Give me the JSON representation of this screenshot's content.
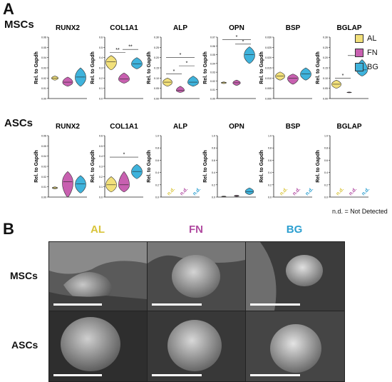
{
  "panel_a_label": "A",
  "panel_b_label": "B",
  "row_labels": [
    "MSCs",
    "ASCs"
  ],
  "y_axis_label": "Rel. to Gapdh",
  "nd_label": "n.d.",
  "nd_note": "n.d. = Not Detected",
  "legend": [
    {
      "name": "AL",
      "color": "#f2e07a"
    },
    {
      "name": "FN",
      "color": "#c860b0"
    },
    {
      "name": "BG",
      "color": "#3fb3dc"
    }
  ],
  "colors": {
    "AL": "#f2e07a",
    "FN": "#c860b0",
    "BG": "#3fb3dc",
    "al_text": "#d9c43a",
    "fn_text": "#b04aa0",
    "bg_text": "#2c9fd0"
  },
  "chart_data": [
    {
      "type": "violin",
      "row": "MSCs",
      "title": "RUNX2",
      "ylabel": "Rel. to Gapdh",
      "ylim": [
        0,
        0.06
      ],
      "yticks": [
        "0.00",
        "0.01",
        "0.02",
        "0.03",
        "0.04",
        "0.05",
        "0.06"
      ],
      "series": [
        {
          "name": "AL",
          "median": 0.02,
          "min": 0.018,
          "max": 0.022
        },
        {
          "name": "FN",
          "median": 0.016,
          "min": 0.012,
          "max": 0.021
        },
        {
          "name": "BG",
          "median": 0.021,
          "min": 0.012,
          "max": 0.03
        }
      ],
      "significance": []
    },
    {
      "type": "violin",
      "row": "MSCs",
      "title": "COL1A1",
      "ylabel": "Rel. to Gapdh",
      "ylim": [
        0,
        0.6
      ],
      "yticks": [
        "0.0",
        "0.1",
        "0.2",
        "0.3",
        "0.4",
        "0.5",
        "0.6"
      ],
      "series": [
        {
          "name": "AL",
          "median": 0.36,
          "min": 0.28,
          "max": 0.42
        },
        {
          "name": "FN",
          "median": 0.19,
          "min": 0.15,
          "max": 0.25
        },
        {
          "name": "BG",
          "median": 0.34,
          "min": 0.29,
          "max": 0.4
        }
      ],
      "significance": [
        {
          "from": 0,
          "to": 1,
          "y": 0.45,
          "label": "**"
        },
        {
          "from": 1,
          "to": 2,
          "y": 0.48,
          "label": "**"
        }
      ]
    },
    {
      "type": "violin",
      "row": "MSCs",
      "title": "ALP",
      "ylabel": "Rel. to Gapdh",
      "ylim": [
        0,
        0.3
      ],
      "yticks": [
        "0.00",
        "0.05",
        "0.10",
        "0.15",
        "0.20",
        "0.25",
        "0.30"
      ],
      "series": [
        {
          "name": "AL",
          "median": 0.08,
          "min": 0.06,
          "max": 0.1
        },
        {
          "name": "FN",
          "median": 0.04,
          "min": 0.03,
          "max": 0.06
        },
        {
          "name": "BG",
          "median": 0.08,
          "min": 0.06,
          "max": 0.11
        }
      ],
      "significance": [
        {
          "from": 0,
          "to": 1,
          "y": 0.12,
          "label": "*"
        },
        {
          "from": 1,
          "to": 2,
          "y": 0.16,
          "label": "*"
        },
        {
          "from": 0,
          "to": 2,
          "y": 0.2,
          "label": "*"
        }
      ]
    },
    {
      "type": "violin",
      "row": "MSCs",
      "title": "OPN",
      "ylabel": "Rel. to Gapdh",
      "ylim": [
        0,
        0.07
      ],
      "yticks": [
        "0.00",
        "0.01",
        "0.02",
        "0.03",
        "0.04",
        "0.05",
        "0.06",
        "0.07"
      ],
      "series": [
        {
          "name": "AL",
          "median": 0.018,
          "min": 0.017,
          "max": 0.019
        },
        {
          "name": "FN",
          "median": 0.018,
          "min": 0.015,
          "max": 0.021
        },
        {
          "name": "BG",
          "median": 0.05,
          "min": 0.04,
          "max": 0.059
        }
      ],
      "significance": [
        {
          "from": 1,
          "to": 2,
          "y": 0.062,
          "label": "*"
        },
        {
          "from": 0,
          "to": 2,
          "y": 0.067,
          "label": "*"
        }
      ]
    },
    {
      "type": "violin",
      "row": "MSCs",
      "title": "BSP",
      "ylabel": "Rel. to Gapdh",
      "ylim": [
        0,
        0.03
      ],
      "yticks": [
        "0.000",
        "0.005",
        "0.010",
        "0.015",
        "0.020",
        "0.025",
        "0.030"
      ],
      "series": [
        {
          "name": "AL",
          "median": 0.011,
          "min": 0.009,
          "max": 0.013
        },
        {
          "name": "FN",
          "median": 0.01,
          "min": 0.007,
          "max": 0.012
        },
        {
          "name": "BG",
          "median": 0.012,
          "min": 0.009,
          "max": 0.015
        }
      ],
      "significance": []
    },
    {
      "type": "violin",
      "row": "MSCs",
      "title": "BGLAP",
      "ylabel": "Rel. to Gapdh",
      "ylim": [
        0,
        0.3
      ],
      "yticks": [
        "0.00",
        "0.05",
        "0.10",
        "0.15",
        "0.20",
        "0.25",
        "0.30"
      ],
      "series": [
        {
          "name": "AL",
          "median": 0.07,
          "min": 0.05,
          "max": 0.09
        },
        {
          "name": "FN",
          "median": 0.03,
          "min": 0.028,
          "max": 0.032
        },
        {
          "name": "BG",
          "median": 0.14,
          "min": 0.11,
          "max": 0.19
        }
      ],
      "significance": [
        {
          "from": 0,
          "to": 1,
          "y": 0.1,
          "label": "*"
        },
        {
          "from": 1,
          "to": 2,
          "y": 0.21,
          "label": "*"
        }
      ]
    },
    {
      "type": "violin",
      "row": "ASCs",
      "title": "RUNX2",
      "ylabel": "Rel. to Gapdh",
      "ylim": [
        0,
        0.06
      ],
      "yticks": [
        "0.00",
        "0.01",
        "0.02",
        "0.03",
        "0.04",
        "0.05",
        "0.06"
      ],
      "series": [
        {
          "name": "AL",
          "median": 0.009,
          "min": 0.008,
          "max": 0.01
        },
        {
          "name": "FN",
          "median": 0.015,
          "min": 0.0,
          "max": 0.025
        },
        {
          "name": "BG",
          "median": 0.013,
          "min": 0.004,
          "max": 0.021
        }
      ],
      "significance": []
    },
    {
      "type": "violin",
      "row": "ASCs",
      "title": "COL1A1",
      "ylabel": "Rel. to Gapdh",
      "ylim": [
        0,
        0.6
      ],
      "yticks": [
        "0.0",
        "0.1",
        "0.2",
        "0.3",
        "0.4",
        "0.5",
        "0.6"
      ],
      "series": [
        {
          "name": "AL",
          "median": 0.12,
          "min": 0.05,
          "max": 0.2
        },
        {
          "name": "FN",
          "median": 0.12,
          "min": 0.05,
          "max": 0.25
        },
        {
          "name": "BG",
          "median": 0.25,
          "min": 0.18,
          "max": 0.32
        }
      ],
      "significance": [
        {
          "from": 0,
          "to": 2,
          "y": 0.39,
          "label": "*"
        }
      ]
    },
    {
      "type": "violin",
      "row": "ASCs",
      "title": "ALP",
      "ylabel": "Rel. to Gapdh",
      "ylim": [
        0,
        1.0
      ],
      "yticks": [
        "0.0",
        "0.2",
        "0.4",
        "0.6",
        "0.8",
        "1.0"
      ],
      "series": [
        {
          "name": "AL",
          "not_detected": true
        },
        {
          "name": "FN",
          "not_detected": true
        },
        {
          "name": "BG",
          "not_detected": true
        }
      ],
      "significance": []
    },
    {
      "type": "violin",
      "row": "ASCs",
      "title": "OPN",
      "ylabel": "Rel. to Gapdh",
      "ylim": [
        0,
        1.0
      ],
      "yticks": [
        "0.0",
        "0.2",
        "0.4",
        "0.6",
        "0.8",
        "1.0"
      ],
      "series": [
        {
          "name": "AL",
          "median": 0.01,
          "min": 0.005,
          "max": 0.015
        },
        {
          "name": "FN",
          "median": 0.02,
          "min": 0.01,
          "max": 0.03
        },
        {
          "name": "BG",
          "median": 0.09,
          "min": 0.04,
          "max": 0.15
        }
      ],
      "significance": []
    },
    {
      "type": "violin",
      "row": "ASCs",
      "title": "BSP",
      "ylabel": "Rel. to Gapdh",
      "ylim": [
        0,
        1.0
      ],
      "yticks": [
        "0.0",
        "0.2",
        "0.4",
        "0.6",
        "0.8",
        "1.0"
      ],
      "series": [
        {
          "name": "AL",
          "not_detected": true
        },
        {
          "name": "FN",
          "not_detected": true
        },
        {
          "name": "BG",
          "not_detected": true
        }
      ],
      "significance": []
    },
    {
      "type": "violin",
      "row": "ASCs",
      "title": "BGLAP",
      "ylabel": "Rel. to Gapdh",
      "ylim": [
        0,
        1.0
      ],
      "yticks": [
        "0.0",
        "0.2",
        "0.4",
        "0.6",
        "0.8",
        "1.0"
      ],
      "series": [
        {
          "name": "AL",
          "not_detected": true
        },
        {
          "name": "FN",
          "not_detected": true
        },
        {
          "name": "BG",
          "not_detected": true
        }
      ],
      "significance": []
    }
  ],
  "sem_columns": [
    "AL",
    "FN",
    "BG"
  ],
  "sem_rows": [
    "MSCs",
    "ASCs"
  ]
}
